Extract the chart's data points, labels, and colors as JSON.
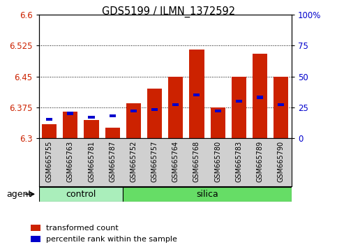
{
  "title": "GDS5199 / ILMN_1372592",
  "samples": [
    "GSM665755",
    "GSM665763",
    "GSM665781",
    "GSM665787",
    "GSM665752",
    "GSM665757",
    "GSM665764",
    "GSM665768",
    "GSM665780",
    "GSM665783",
    "GSM665789",
    "GSM665790"
  ],
  "n_control": 4,
  "n_silica": 8,
  "group_labels": [
    "control",
    "silica"
  ],
  "transformed_count": [
    6.335,
    6.365,
    6.345,
    6.325,
    6.385,
    6.42,
    6.45,
    6.515,
    6.375,
    6.45,
    6.505,
    6.45
  ],
  "percentile_rank": [
    15,
    20,
    17,
    18,
    22,
    23,
    27,
    35,
    22,
    30,
    33,
    27
  ],
  "ymin": 6.3,
  "ymax": 6.6,
  "yticks": [
    6.3,
    6.375,
    6.45,
    6.525,
    6.6
  ],
  "right_yticks": [
    0,
    25,
    50,
    75,
    100
  ],
  "bar_color": "#cc2200",
  "blue_color": "#0000cc",
  "bar_width": 0.7,
  "control_color": "#aaeebb",
  "silica_color": "#66dd66",
  "agent_label": "agent",
  "legend_tc": "transformed count",
  "legend_pr": "percentile rank within the sample",
  "left_label_color": "#cc2200",
  "right_label_color": "#0000cc"
}
